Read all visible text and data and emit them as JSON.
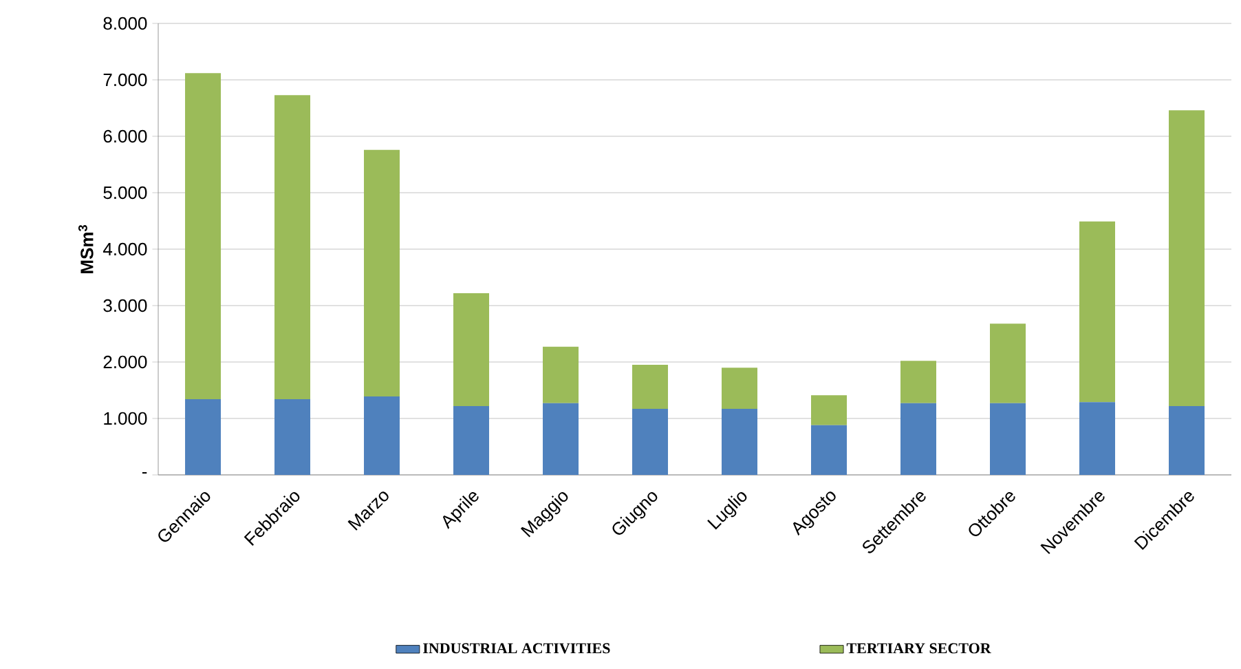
{
  "chart_data": {
    "type": "bar",
    "stacked": true,
    "ylabel": "MSm$^{3}$",
    "categories": [
      "Gennaio",
      "Febbraio",
      "Marzo",
      "Aprile",
      "Maggio",
      "Giugno",
      "Luglio",
      "Agosto",
      "Settembre",
      "Ottobre",
      "Novembre",
      "Dicembre"
    ],
    "series": [
      {
        "name": "INDUSTRIAL ACTIVITIES",
        "color": "#4f81bd",
        "values": [
          1340,
          1340,
          1390,
          1220,
          1270,
          1170,
          1170,
          880,
          1270,
          1270,
          1290,
          1220
        ]
      },
      {
        "name": "TERTIARY SECTOR",
        "color": "#9bbb59",
        "values": [
          5780,
          5390,
          4370,
          2000,
          1000,
          780,
          730,
          530,
          750,
          1410,
          3200,
          5240
        ]
      }
    ],
    "ylim": [
      0,
      8000
    ],
    "yticks": [
      {
        "value": 0,
        "label": "-"
      },
      {
        "value": 1000,
        "label": "1.000"
      },
      {
        "value": 2000,
        "label": "2.000"
      },
      {
        "value": 3000,
        "label": "3.000"
      },
      {
        "value": 4000,
        "label": "4.000"
      },
      {
        "value": 5000,
        "label": "5.000"
      },
      {
        "value": 6000,
        "label": "6.000"
      },
      {
        "value": 7000,
        "label": "7.000"
      },
      {
        "value": 8000,
        "label": "8.000"
      }
    ],
    "grid": "y",
    "legend": "bottom"
  }
}
